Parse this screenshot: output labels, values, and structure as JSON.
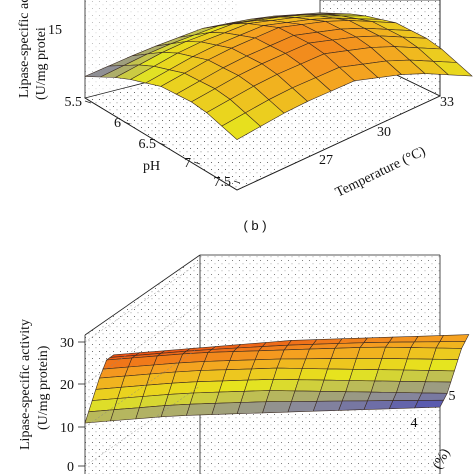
{
  "chart_data": [
    {
      "type": "surface3d",
      "panel_label": "",
      "zlabel_line1": "Lipase-specific ac",
      "zlabel_line2": "(U/mg protei",
      "x_axis": {
        "label": "pH",
        "ticks": [
          "5.5",
          "6",
          "6.5",
          "7",
          "7.5"
        ],
        "range": [
          5.5,
          7.5
        ]
      },
      "y_axis": {
        "label": "Temperature (°C)",
        "ticks": [
          "27",
          "30",
          "33"
        ],
        "range": [
          25,
          35
        ]
      },
      "z_axis": {
        "ticks": [
          "15"
        ],
        "range": [
          0,
          30
        ]
      },
      "surface": {
        "x": [
          5.5,
          6.0,
          6.5,
          7.0,
          7.5
        ],
        "y": [
          33,
          31,
          29,
          27,
          25
        ],
        "z": [
          [
            6,
            9,
            11,
            10,
            7
          ],
          [
            12,
            17,
            19,
            17,
            13
          ],
          [
            16,
            21,
            24,
            22,
            17
          ],
          [
            17,
            22,
            25,
            23,
            18
          ],
          [
            14,
            19,
            22,
            20,
            15
          ]
        ]
      },
      "colormap": [
        "#1a1acc",
        "#8a8a9a",
        "#e6e61e",
        "#f5a020",
        "#e83a10"
      ]
    },
    {
      "type": "surface3d",
      "panel_label": "( b )",
      "zlabel_line1": "Lipase-specific activity",
      "zlabel_line2": "(U/mg protein)",
      "x_axis": {
        "label": "",
        "ticks": [],
        "range": [
          0,
          1
        ]
      },
      "y_axis": {
        "label": "(%)",
        "ticks": [
          "4",
          "5"
        ],
        "range": [
          1,
          5
        ]
      },
      "z_axis": {
        "ticks": [
          "0",
          "10",
          "20",
          "30"
        ],
        "range": [
          0,
          30
        ]
      },
      "surface": {
        "x": [
          0,
          0.25,
          0.5,
          0.75,
          1.0
        ],
        "y": [
          1,
          2,
          3,
          4,
          5
        ],
        "z": [
          [
            29,
            27,
            22,
            16,
            10
          ],
          [
            28,
            26,
            21,
            15,
            9
          ],
          [
            27,
            24,
            19,
            13,
            7
          ],
          [
            25,
            22,
            16,
            10,
            5
          ],
          [
            23,
            19,
            13,
            7,
            3
          ]
        ]
      },
      "colormap": [
        "#1a1acc",
        "#8a8a9a",
        "#e6e61e",
        "#f5a020",
        "#e83a10"
      ]
    }
  ]
}
